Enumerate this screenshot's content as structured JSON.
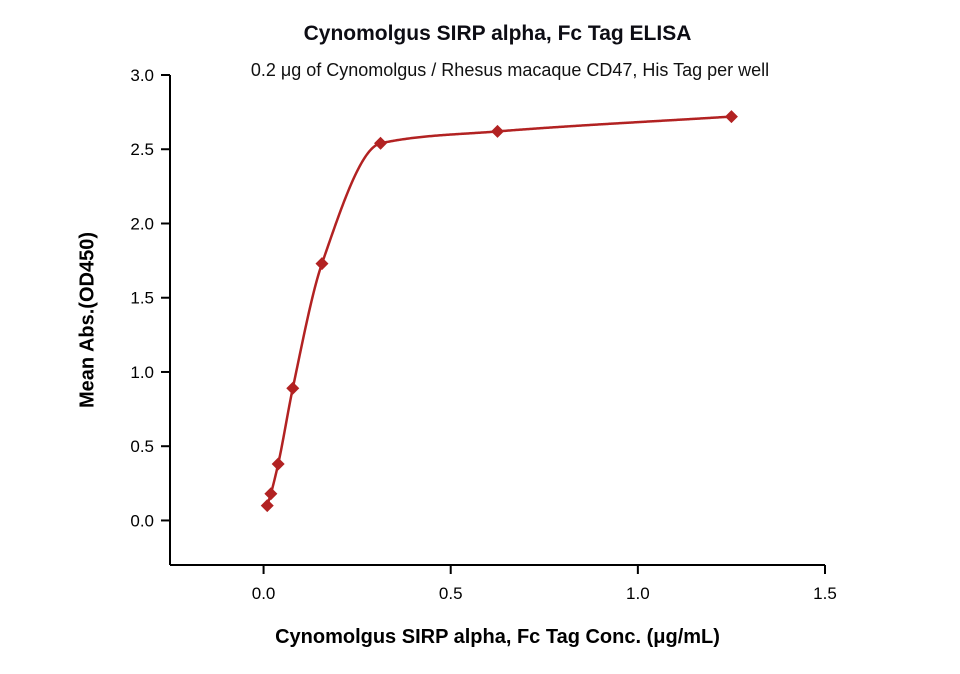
{
  "chart_data": {
    "type": "scatter",
    "title": "Cynomolgus SIRP alpha, Fc Tag ELISA",
    "subtitle": "0.2 μg of Cynomolgus / Rhesus macaque CD47, His Tag per well",
    "xlabel": "Cynomolgus SIRP alpha, Fc Tag Conc. (μg/mL)",
    "ylabel": "Mean Abs.(OD450)",
    "x": [
      0.0098,
      0.0195,
      0.039,
      0.078,
      0.156,
      0.3125,
      0.625,
      1.25
    ],
    "y": [
      0.1,
      0.18,
      0.38,
      0.89,
      1.73,
      2.54,
      2.62,
      2.72
    ],
    "xlim": [
      -0.25,
      1.5
    ],
    "ylim": [
      -0.3,
      3.0
    ],
    "x_ticks": [
      0.0,
      0.5,
      1.0,
      1.5
    ],
    "x_tick_labels": [
      "0.0",
      "0.5",
      "1.0",
      "1.5"
    ],
    "y_ticks": [
      0.0,
      0.5,
      1.0,
      1.5,
      2.0,
      2.5,
      3.0
    ],
    "y_tick_labels": [
      "0.0",
      "0.5",
      "1.0",
      "1.5",
      "2.0",
      "2.5",
      "3.0"
    ],
    "grid": false,
    "legend": "none",
    "marker": "diamond",
    "series_color": "#b22222",
    "axis_color": "#000000",
    "text_color": "#000000"
  }
}
